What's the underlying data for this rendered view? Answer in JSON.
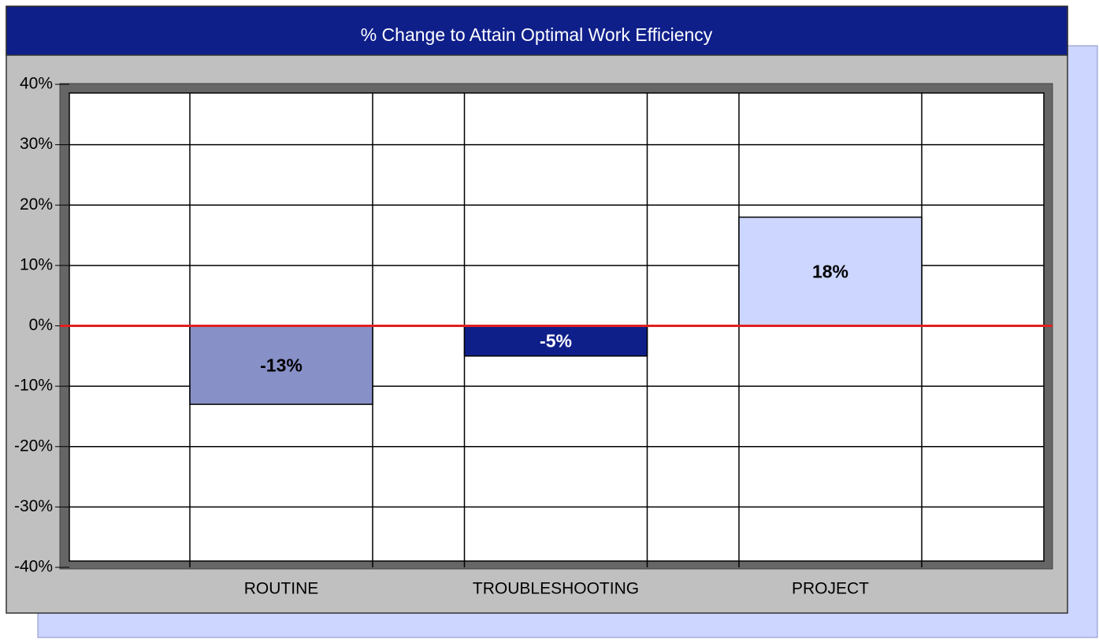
{
  "chart_data": {
    "type": "bar",
    "title": "% Change to Attain Optimal Work Efficiency",
    "categories": [
      "ROUTINE",
      "TROUBLESHOOTING",
      "PROJECT"
    ],
    "values": [
      -13,
      -5,
      18
    ],
    "value_labels": [
      "-13%",
      "-5%",
      "18%"
    ],
    "colors": [
      "#8890c8",
      "#0f1f8a",
      "#ccd6ff"
    ],
    "label_colors": [
      "#000000",
      "#ffffff",
      "#000000"
    ],
    "zero_line_color": "#e02020",
    "ylim": [
      -40,
      40
    ],
    "yticks": [
      {
        "value": -40,
        "label": "-40%"
      },
      {
        "value": -30,
        "label": "-30%"
      },
      {
        "value": -20,
        "label": "-20%"
      },
      {
        "value": -10,
        "label": "-10%"
      },
      {
        "value": 0,
        "label": "0%"
      },
      {
        "value": 10,
        "label": "10%"
      },
      {
        "value": 20,
        "label": "20%"
      },
      {
        "value": 30,
        "label": "30%"
      },
      {
        "value": 40,
        "label": "40%"
      }
    ],
    "grid": true
  }
}
